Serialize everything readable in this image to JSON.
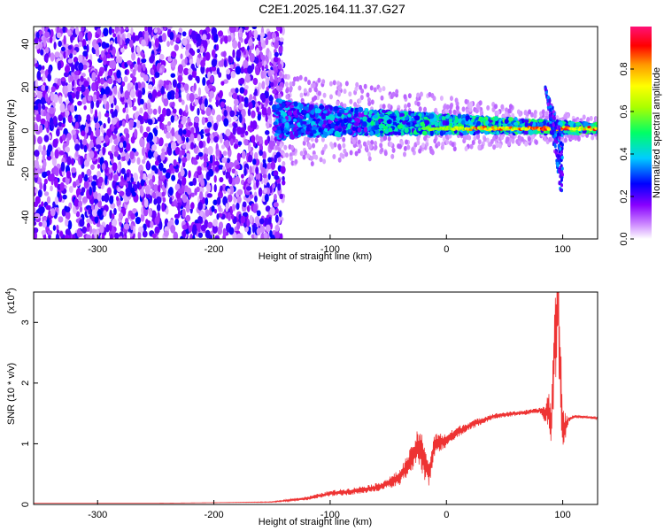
{
  "title": "C2E1.2025.164.11.37.G27",
  "chart_data": [
    {
      "type": "heatmap",
      "xlabel": "Height of straight line (km)",
      "ylabel": "Frequency (Hz)",
      "xlim": [
        -355,
        130
      ],
      "ylim": [
        -50,
        48
      ],
      "xticks": [
        -300,
        -200,
        -100,
        0,
        100
      ],
      "yticks": [
        -40,
        -20,
        0,
        20,
        40
      ],
      "colorbar": {
        "label": "Normalized spectral amplitude",
        "range": [
          0,
          1
        ],
        "ticks": [
          "0.0",
          "0.2",
          "0.4",
          "0.6",
          "0.8"
        ],
        "colors": [
          "#ffffff",
          "#8800ff",
          "#0000ff",
          "#00ffff",
          "#00ff00",
          "#ffff00",
          "#ff8800",
          "#ff0000",
          "#ff0088"
        ]
      },
      "regions": [
        {
          "name": "noise",
          "x": [
            -355,
            -148
          ],
          "y": [
            -50,
            48
          ],
          "amplitude": 0.15
        },
        {
          "name": "band",
          "x": [
            -148,
            130
          ],
          "center_y": [
            5,
            1
          ],
          "half_width": [
            10,
            2
          ],
          "amplitude": 0.4
        },
        {
          "name": "line",
          "x": [
            -20,
            130
          ],
          "y": 1,
          "amplitude": 0.85
        },
        {
          "name": "spike",
          "x": [
            85,
            100
          ],
          "y": [
            -35,
            20
          ],
          "amplitude": 0.3
        }
      ]
    },
    {
      "type": "line",
      "xlabel": "Height of straight line (km)",
      "ylabel": "SNR (10 * v/v)",
      "yscale_label": "(x10",
      "yscale_exp": "4",
      "yscale_close": ")",
      "xlim": [
        -355,
        130
      ],
      "ylim": [
        0,
        3.5
      ],
      "xticks": [
        -300,
        -200,
        -100,
        0,
        100
      ],
      "yticks": [
        0,
        1,
        2,
        3
      ],
      "color": "#ee3333",
      "series": [
        {
          "x": [
            -355,
            -300,
            -250,
            -200,
            -150,
            -120,
            -100,
            -80,
            -60,
            -50,
            -40,
            -30,
            -25,
            -20,
            -15,
            -10,
            0,
            10,
            20,
            30,
            40,
            50,
            60,
            70,
            80,
            85,
            88,
            90,
            92,
            94,
            96,
            98,
            100,
            105,
            110,
            120,
            130
          ],
          "y": [
            0.02,
            0.02,
            0.02,
            0.03,
            0.04,
            0.1,
            0.18,
            0.22,
            0.28,
            0.35,
            0.45,
            0.75,
            0.95,
            0.8,
            0.5,
            1.0,
            1.05,
            1.2,
            1.3,
            1.38,
            1.45,
            1.48,
            1.5,
            1.52,
            1.55,
            1.5,
            1.6,
            1.3,
            2.1,
            2.9,
            3.4,
            2.2,
            1.2,
            1.4,
            1.45,
            1.44,
            1.42
          ],
          "noise": [
            0,
            0,
            0,
            0,
            0.01,
            0.05,
            0.08,
            0.1,
            0.12,
            0.15,
            0.22,
            0.35,
            0.45,
            0.6,
            0.35,
            0.3,
            0.2,
            0.15,
            0.12,
            0.1,
            0.08,
            0.07,
            0.07,
            0.07,
            0.07,
            0.25,
            0.5,
            0.6,
            1.0,
            1.4,
            1.6,
            1.2,
            0.6,
            0.08,
            0.04,
            0.03,
            0.03
          ]
        }
      ]
    }
  ]
}
